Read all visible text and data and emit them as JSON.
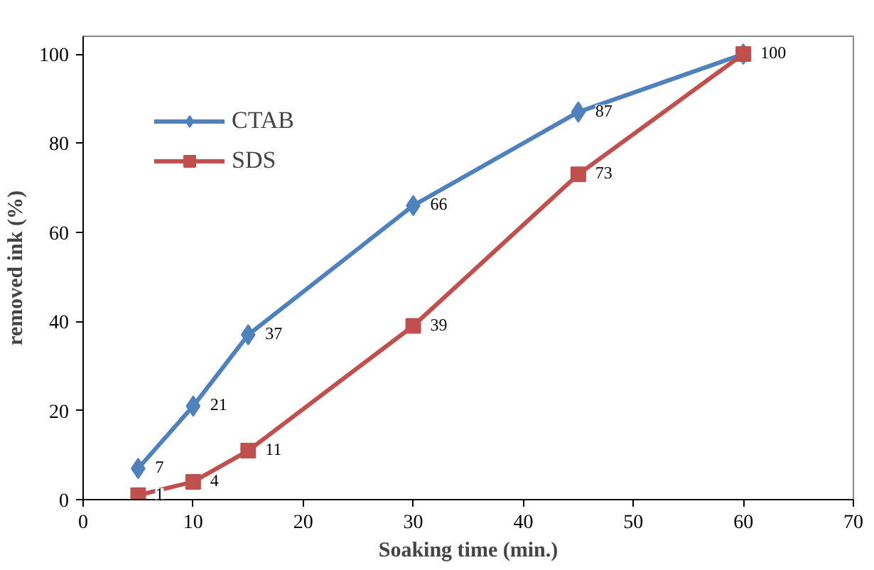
{
  "chart_data": {
    "type": "line",
    "xlabel": "Soaking time (min.)",
    "ylabel": "removed ink (%)",
    "xlim": [
      0,
      70
    ],
    "xticks": [
      0,
      10,
      20,
      30,
      40,
      50,
      60,
      70
    ],
    "ylim": [
      0,
      104
    ],
    "yticks": [
      0,
      20,
      40,
      60,
      80,
      100
    ],
    "grid": false,
    "legend": "top left",
    "series": [
      {
        "name": "CTAB",
        "color": "#4f81bd",
        "marker": "diamond",
        "x": [
          5,
          10,
          15,
          30,
          45,
          60
        ],
        "values": [
          7,
          21,
          37,
          66,
          87,
          100
        ],
        "value_labels": [
          "7",
          "21",
          "37",
          "66",
          "87",
          null
        ]
      },
      {
        "name": "SDS",
        "color": "#c0504d",
        "marker": "square",
        "x": [
          5,
          10,
          15,
          30,
          45,
          60
        ],
        "values": [
          1,
          4,
          11,
          39,
          73,
          100
        ],
        "value_labels": [
          "1",
          "4",
          "11",
          "39",
          "73",
          "100"
        ]
      }
    ]
  }
}
